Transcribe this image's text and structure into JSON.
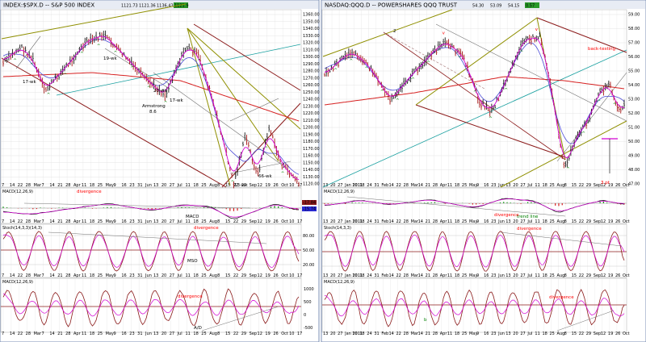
{
  "colors": {
    "price_up": "#1a1a1a",
    "price_down": "#a31515",
    "ma_magenta": "#d400d4",
    "ma_blue": "#4b4bd6",
    "ma_red": "#d62020",
    "ma_teal": "#1aa0a0",
    "trend_olive": "#8f8f00",
    "trend_maroon": "#8b1a1a",
    "trend_grey": "#707070",
    "annotation_red": "#ff0000",
    "annotation_green": "#008000",
    "panel_bg": "#ffffff",
    "window_border": "#7b8fb5",
    "grid": "#dedede"
  },
  "left_chart": {
    "title": "INDEX:$SPX.D -- S&P 500 INDEX",
    "header_values": [
      "1121.73",
      "1121.36",
      "1136.43",
      "1121.9"
    ],
    "price_axis": [
      "1360.00",
      "1350.00",
      "1340.00",
      "1330.00",
      "1320.00",
      "1310.00",
      "1300.00",
      "1290.00",
      "1280.00",
      "1270.00",
      "1260.00",
      "1250.00",
      "1240.00",
      "1230.00",
      "1220.00",
      "1210.00",
      "1200.00",
      "1190.00",
      "1180.00",
      "1170.00",
      "1160.00",
      "1150.00",
      "1140.00",
      "1130.00",
      "1120.00"
    ],
    "annotations": {
      "wk17": "17-wk",
      "wk19": "19-wk",
      "wk20": "20-wk",
      "wk17b": "17-wk",
      "armstrong": "Armstrong",
      "armstrong_num": "8.6",
      "wk66": "66-wk",
      "wk13": "13-wk",
      "macd_label": "MACD",
      "mso_label": "MSO",
      "ad_label": "A/D",
      "divergence": "divergence"
    },
    "macd_title": "MACD(12,26,9)",
    "macd_values": [
      "-17.84",
      "-15.74"
    ],
    "stoch_title": "Stoch(14,3,3)(14,3)",
    "stoch_values": [
      "80.00",
      "50.00",
      "20.00"
    ],
    "ad_title": "MACD(12,26,9)",
    "ad_values": [
      "1000",
      "500",
      "0",
      "-500"
    ],
    "date_ticks": [
      "7",
      "14",
      "22",
      "28",
      "Mar",
      "7",
      "14",
      "21",
      "28",
      "Apr",
      "11",
      "18",
      "25",
      "May",
      "9",
      "16",
      "23",
      "31",
      "Jun",
      "13",
      "20",
      "27",
      "Jul",
      "11",
      "18",
      "25",
      "Aug",
      "8",
      "15",
      "22",
      "29",
      "Sep",
      "12",
      "19",
      "26",
      "Oct",
      "10",
      "17"
    ]
  },
  "right_chart": {
    "title": "NASDAQ:QQQ.D -- POWERSHARES QQQ TRUST",
    "header_values": [
      "54.30",
      "53.09",
      "54.15",
      "0.57"
    ],
    "price_axis": [
      "59.00",
      "58.00",
      "57.00",
      "56.00",
      "55.00",
      "54.00",
      "53.00",
      "52.00",
      "51.00",
      "50.00",
      "49.00",
      "48.00",
      "47.00"
    ],
    "annotations": {
      "back_testing": "back-testing",
      "three_pt": "3 pt",
      "two": "2",
      "b": "b",
      "two_lower": "2",
      "trend_line": "trend line",
      "divergence": "divergence"
    },
    "macd_title": "MACD(12,26,9)",
    "stoch_title": "Stoch(14,3,3)",
    "ad_title": "MACD(12,26,9)",
    "date_ticks": [
      "13",
      "20",
      "27",
      "Jan 2011",
      "10",
      "18",
      "24",
      "31",
      "Feb",
      "14",
      "22",
      "28",
      "Mar",
      "14",
      "21",
      "28",
      "Apr",
      "11",
      "18",
      "25",
      "May",
      "9",
      "16",
      "23",
      "Jun",
      "13",
      "20",
      "27",
      "Jul",
      "11",
      "18",
      "25",
      "Aug",
      "8",
      "15",
      "22",
      "29",
      "Sep",
      "12",
      "19",
      "26",
      "Oct"
    ]
  }
}
